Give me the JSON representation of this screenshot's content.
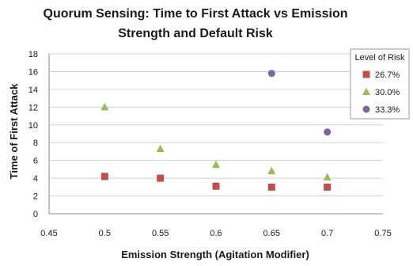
{
  "chart_data": {
    "type": "scatter",
    "title_lines": [
      "Quorum Sensing: Time to First Attack vs Emission",
      "Strength and Default Risk"
    ],
    "xlabel": "Emission Strength (Agitation Modifier)",
    "ylabel": "Time of First Attack",
    "xlim": [
      0.45,
      0.75
    ],
    "ylim": [
      0,
      18
    ],
    "xticks": [
      "0.45",
      "0.5",
      "0.55",
      "0.6",
      "0.65",
      "0.7",
      "0.75"
    ],
    "yticks": [
      "0",
      "2",
      "4",
      "6",
      "8",
      "10",
      "12",
      "14",
      "16",
      "18"
    ],
    "grid": "horizontal",
    "legend": {
      "title": "Level of Risk",
      "placement": "right"
    },
    "series": [
      {
        "name": "26.7%",
        "marker": "square",
        "color": "#c0504d",
        "points": [
          [
            0.5,
            4.2
          ],
          [
            0.55,
            4.0
          ],
          [
            0.6,
            3.1
          ],
          [
            0.65,
            3.0
          ],
          [
            0.7,
            3.0
          ]
        ]
      },
      {
        "name": "30.0%",
        "marker": "triangle",
        "color": "#9bbb59",
        "points": [
          [
            0.5,
            12.0
          ],
          [
            0.55,
            7.3
          ],
          [
            0.6,
            5.5
          ],
          [
            0.65,
            4.8
          ],
          [
            0.7,
            4.1
          ]
        ]
      },
      {
        "name": "33.3%",
        "marker": "circle",
        "color": "#8064a2",
        "points": [
          [
            0.65,
            15.8
          ],
          [
            0.7,
            9.2
          ]
        ]
      }
    ]
  }
}
